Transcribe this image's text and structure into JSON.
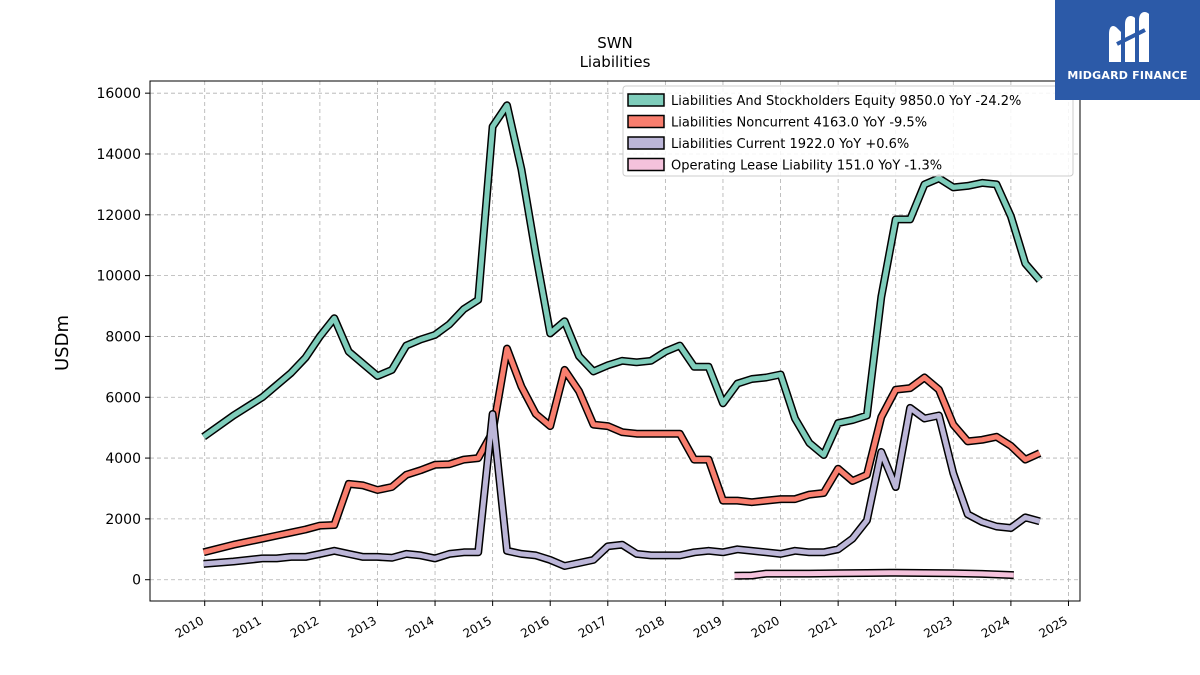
{
  "chart_data": {
    "type": "line",
    "title": "SWN",
    "subtitle": "Liabilities",
    "ylabel": "USDm",
    "xlabel": "",
    "ylim": [
      -700,
      16400
    ],
    "xlim": [
      2009.05,
      2025.2
    ],
    "yticks": [
      0,
      2000,
      4000,
      6000,
      8000,
      10000,
      12000,
      14000,
      16000
    ],
    "xticks": [
      2010,
      2011,
      2012,
      2013,
      2014,
      2015,
      2016,
      2017,
      2018,
      2019,
      2020,
      2021,
      2022,
      2023,
      2024,
      2025
    ],
    "grid": true,
    "legend_position": "top-right",
    "series": [
      {
        "name": "Liabilities And Stockholders Equity",
        "legend": "Liabilities And Stockholders Equity  9850.0 YoY -24.2%",
        "color": "#7fcdbb",
        "x": [
          2009.98,
          2010.5,
          2011.0,
          2011.25,
          2011.5,
          2011.75,
          2012.0,
          2012.25,
          2012.5,
          2012.75,
          2013.0,
          2013.25,
          2013.5,
          2013.75,
          2014.0,
          2014.25,
          2014.5,
          2014.75,
          2015.0,
          2015.25,
          2015.5,
          2015.75,
          2016.0,
          2016.25,
          2016.5,
          2016.75,
          2017.0,
          2017.25,
          2017.5,
          2017.75,
          2018.0,
          2018.25,
          2018.5,
          2018.75,
          2019.0,
          2019.25,
          2019.5,
          2019.75,
          2020.0,
          2020.25,
          2020.5,
          2020.75,
          2021.0,
          2021.25,
          2021.5,
          2021.75,
          2022.0,
          2022.25,
          2022.5,
          2022.75,
          2023.0,
          2023.25,
          2023.5,
          2023.75,
          2024.0,
          2024.25,
          2024.5
        ],
        "y": [
          4700,
          5400,
          6000,
          6400,
          6800,
          7300,
          8000,
          8600,
          7500,
          7100,
          6700,
          6900,
          7700,
          7900,
          8050,
          8400,
          8900,
          9200,
          14900,
          15600,
          13500,
          10700,
          8100,
          8500,
          7350,
          6850,
          7050,
          7200,
          7150,
          7200,
          7500,
          7700,
          7000,
          7000,
          5800,
          6450,
          6600,
          6650,
          6750,
          5300,
          4500,
          4100,
          5150,
          5250,
          5400,
          9300,
          11850,
          11850,
          13000,
          13200,
          12900,
          12950,
          13050,
          13000,
          11950,
          10400,
          9850
        ]
      },
      {
        "name": "Liabilities Noncurrent",
        "legend": "Liabilities Noncurrent  4163.0 YoY -9.5%",
        "color": "#f87e6e",
        "x": [
          2009.98,
          2010.5,
          2011.0,
          2011.25,
          2011.5,
          2011.75,
          2012.0,
          2012.25,
          2012.5,
          2012.75,
          2013.0,
          2013.25,
          2013.5,
          2013.75,
          2014.0,
          2014.25,
          2014.5,
          2014.75,
          2015.0,
          2015.25,
          2015.5,
          2015.75,
          2016.0,
          2016.25,
          2016.5,
          2016.75,
          2017.0,
          2017.25,
          2017.5,
          2017.75,
          2018.0,
          2018.25,
          2018.5,
          2018.75,
          2019.0,
          2019.25,
          2019.5,
          2019.75,
          2020.0,
          2020.25,
          2020.5,
          2020.75,
          2021.0,
          2021.25,
          2021.5,
          2021.75,
          2022.0,
          2022.25,
          2022.5,
          2022.75,
          2023.0,
          2023.25,
          2023.5,
          2023.75,
          2024.0,
          2024.25,
          2024.5
        ],
        "y": [
          900,
          1150,
          1350,
          1450,
          1550,
          1650,
          1780,
          1800,
          3150,
          3100,
          2950,
          3050,
          3450,
          3600,
          3780,
          3800,
          3950,
          4000,
          4850,
          7600,
          6350,
          5450,
          5050,
          6900,
          6200,
          5100,
          5050,
          4850,
          4800,
          4800,
          4800,
          4800,
          3950,
          3950,
          2600,
          2600,
          2550,
          2600,
          2650,
          2650,
          2800,
          2850,
          3650,
          3250,
          3450,
          5350,
          6250,
          6300,
          6650,
          6250,
          5100,
          4550,
          4600,
          4700,
          4400,
          3950,
          4163
        ]
      },
      {
        "name": "Liabilities Current",
        "legend": "Liabilities Current  1922.0 YoY +0.6%",
        "color": "#bcb6d8",
        "x": [
          2009.98,
          2010.5,
          2011.0,
          2011.25,
          2011.5,
          2011.75,
          2012.0,
          2012.25,
          2012.5,
          2012.75,
          2013.0,
          2013.25,
          2013.5,
          2013.75,
          2014.0,
          2014.25,
          2014.5,
          2014.75,
          2015.0,
          2015.25,
          2015.5,
          2015.75,
          2016.0,
          2016.25,
          2016.5,
          2016.75,
          2017.0,
          2017.25,
          2017.5,
          2017.75,
          2018.0,
          2018.25,
          2018.5,
          2018.75,
          2019.0,
          2019.25,
          2019.5,
          2019.75,
          2020.0,
          2020.25,
          2020.5,
          2020.75,
          2021.0,
          2021.25,
          2021.5,
          2021.75,
          2022.0,
          2022.25,
          2022.5,
          2022.75,
          2023.0,
          2023.25,
          2023.5,
          2023.75,
          2024.0,
          2024.25,
          2024.5
        ],
        "y": [
          520,
          600,
          700,
          700,
          750,
          750,
          850,
          950,
          850,
          750,
          750,
          720,
          850,
          800,
          700,
          850,
          900,
          900,
          5450,
          950,
          850,
          800,
          650,
          450,
          550,
          650,
          1100,
          1150,
          850,
          800,
          800,
          800,
          900,
          950,
          900,
          1000,
          950,
          900,
          850,
          950,
          900,
          900,
          1000,
          1350,
          1950,
          4200,
          3050,
          5650,
          5300,
          5400,
          3500,
          2150,
          1900,
          1750,
          1700,
          2050,
          1922
        ]
      },
      {
        "name": "Operating Lease Liability",
        "legend": "Operating Lease Liability  151.0 YoY -1.3%",
        "color": "#f4c2dc",
        "x": [
          2019.2,
          2019.5,
          2019.75,
          2020.0,
          2020.5,
          2021.0,
          2021.5,
          2022.0,
          2022.5,
          2023.0,
          2023.5,
          2024.05
        ],
        "y": [
          130,
          140,
          200,
          200,
          200,
          210,
          220,
          230,
          220,
          210,
          190,
          151
        ]
      }
    ]
  },
  "logo": {
    "text": "MIDGARD FINANCE",
    "background": "#2c5aa8"
  }
}
